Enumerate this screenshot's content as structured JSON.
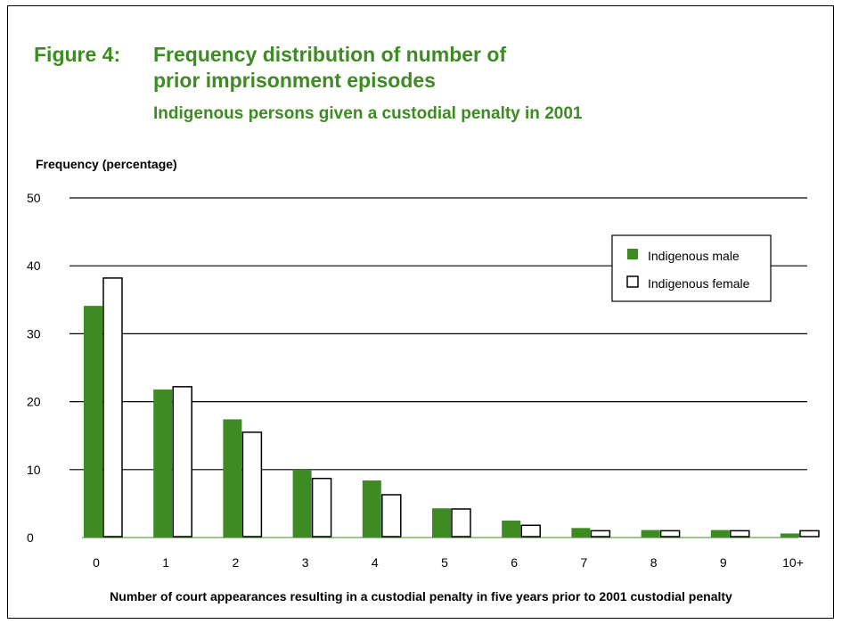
{
  "figure_label": "Figure 4:",
  "chart_data": {
    "type": "bar",
    "title": [
      "Frequency distribution of number of",
      "prior imprisonment episodes"
    ],
    "subtitle": "Indigenous persons given a custodial penalty in 2001",
    "ylabel": "Frequency (percentage)",
    "xlabel": "Number of court appearances resulting in a custodial penalty in five years prior to 2001 custodial penalty",
    "categories": [
      "0",
      "1",
      "2",
      "3",
      "4",
      "5",
      "6",
      "7",
      "8",
      "9",
      "10+"
    ],
    "ylim": [
      0,
      50
    ],
    "yticks": [
      0,
      10,
      20,
      30,
      40,
      50
    ],
    "grid": "horizontal",
    "legend_position": "top-right",
    "series": [
      {
        "name": "Indigenous male",
        "color": "#3d8b22",
        "values": [
          34.1,
          21.8,
          17.4,
          10.0,
          8.4,
          4.3,
          2.5,
          1.4,
          1.1,
          1.1,
          0.6
        ]
      },
      {
        "name": "Indigenous female",
        "color": "#ffffff",
        "values": [
          38.2,
          22.2,
          15.5,
          8.7,
          6.3,
          4.2,
          1.8,
          1.0,
          1.0,
          1.0,
          1.0
        ]
      }
    ]
  }
}
